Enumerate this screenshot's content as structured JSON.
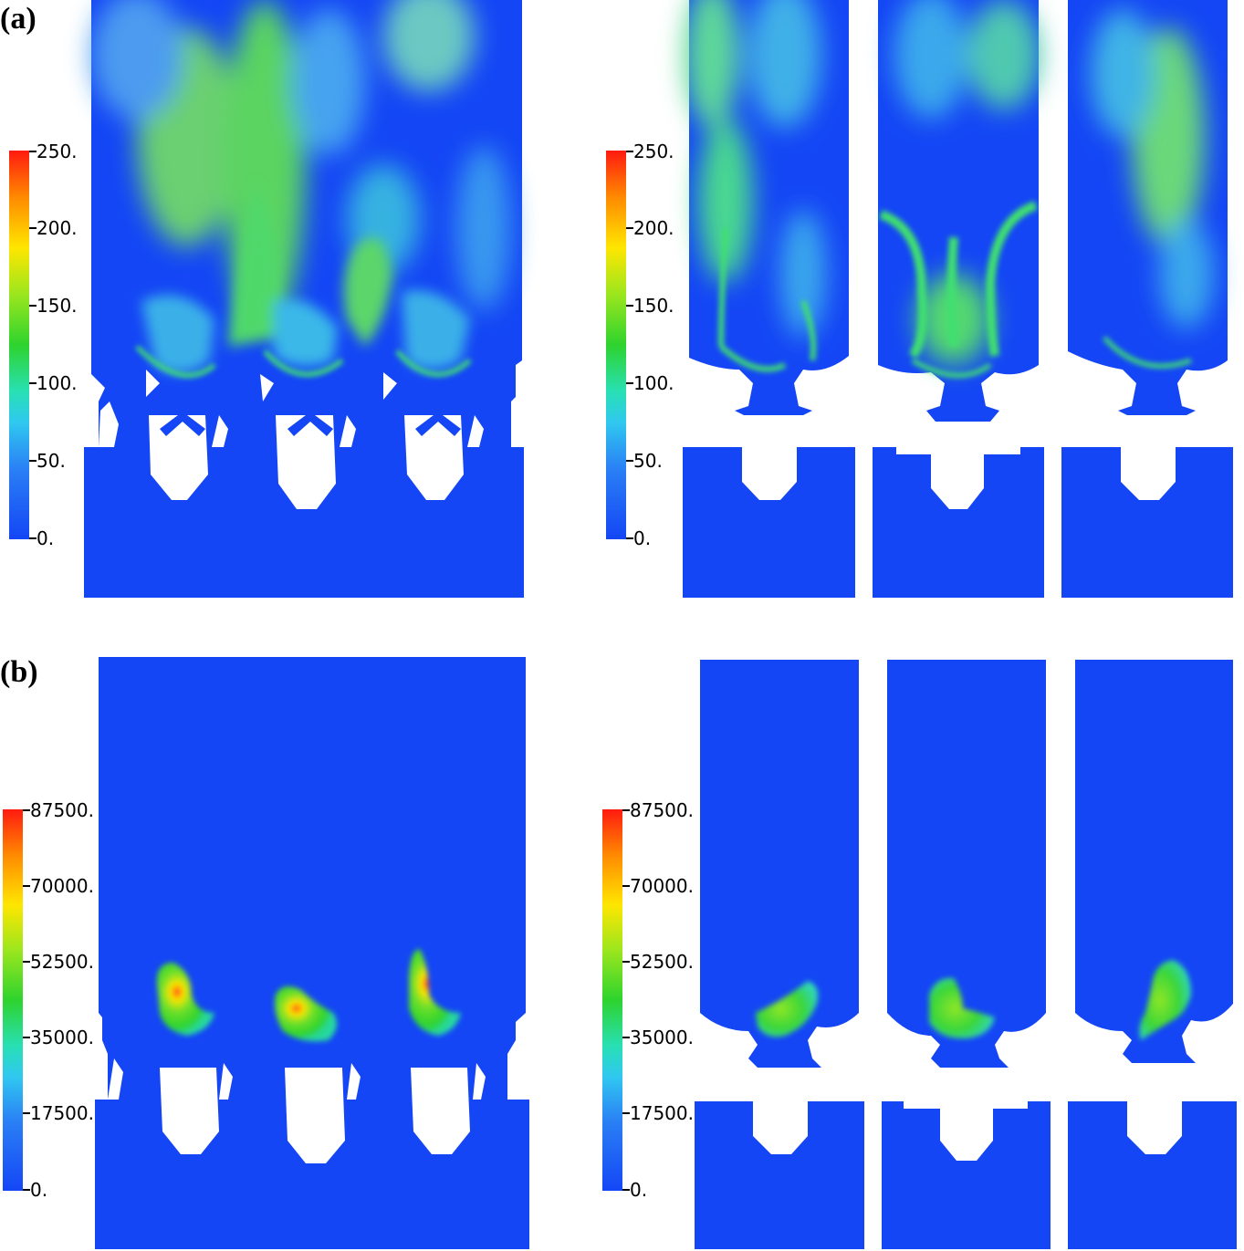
{
  "panels": [
    {
      "label": "(a)",
      "colorbar_ticks": [
        "250.",
        "200.",
        "150.",
        "100.",
        "50.",
        "0."
      ]
    },
    {
      "label": "(b)",
      "colorbar_ticks": [
        "87500.",
        "70000.",
        "52500.",
        "35000.",
        "17500.",
        "0."
      ]
    }
  ],
  "colors": {
    "base": "#1446f5",
    "background": "#ffffff",
    "scale": [
      "#1446f5",
      "#2a7ff5",
      "#30c8f0",
      "#28e0b4",
      "#2ed32e",
      "#9be61e",
      "#ffe600",
      "#ff8a00",
      "#ff1a10"
    ]
  }
}
